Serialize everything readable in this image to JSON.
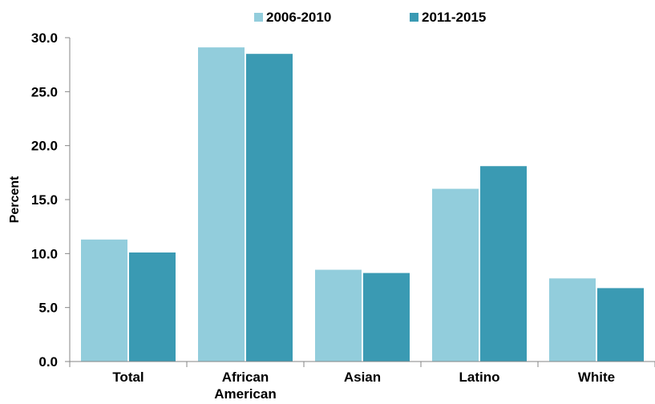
{
  "chart_data": {
    "type": "bar",
    "categories": [
      "Total",
      "African American",
      "Asian",
      "Latino",
      "White"
    ],
    "series": [
      {
        "name": "2006-2010",
        "color": "#92CDDC",
        "values": [
          11.3,
          29.1,
          8.5,
          16.0,
          7.7
        ]
      },
      {
        "name": "2011-2015",
        "color": "#3A9AB3",
        "values": [
          10.1,
          28.5,
          8.2,
          18.1,
          6.8
        ]
      }
    ],
    "title": "",
    "xlabel": "",
    "ylabel": "Percent",
    "ylim": [
      0,
      30
    ],
    "yticks": [
      "0.0",
      "5.0",
      "10.0",
      "15.0",
      "20.0",
      "25.0",
      "30.0"
    ],
    "grid": false,
    "legend_position": "top"
  }
}
